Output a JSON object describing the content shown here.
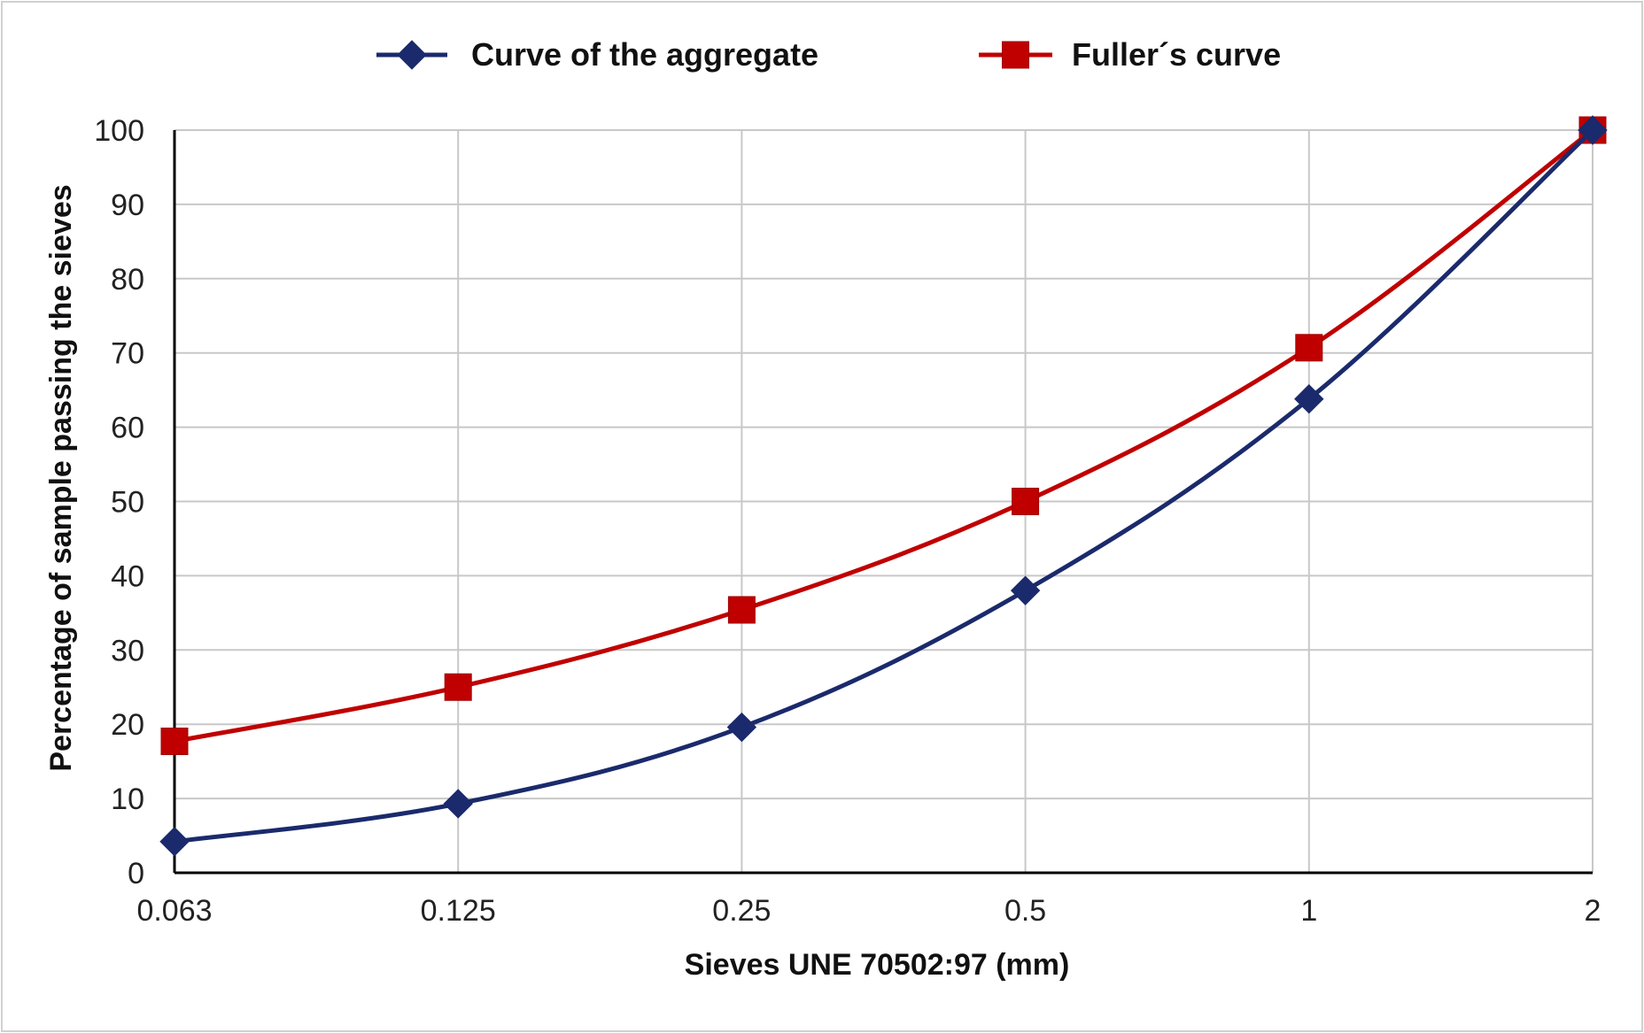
{
  "chart_data": {
    "type": "line",
    "categories": [
      "0.063",
      "0.125",
      "0.25",
      "0.5",
      "1",
      "2"
    ],
    "series": [
      {
        "name": "Curve of the aggregate",
        "values": [
          4.2,
          9.3,
          19.6,
          38.0,
          63.8,
          100
        ],
        "color": "#1a2a6c",
        "marker": "diamond"
      },
      {
        "name": "Fuller´s curve",
        "values": [
          17.7,
          25.0,
          35.4,
          50.0,
          70.7,
          100
        ],
        "color": "#c00000",
        "marker": "square"
      }
    ],
    "xlabel": "Sieves UNE 70502:97 (mm)",
    "ylabel": "Percentage of sample passing the sieves",
    "ylim": [
      0,
      100
    ],
    "yticks": [
      0,
      10,
      20,
      30,
      40,
      50,
      60,
      70,
      80,
      90,
      100
    ],
    "grid": true,
    "legend_position": "top"
  }
}
